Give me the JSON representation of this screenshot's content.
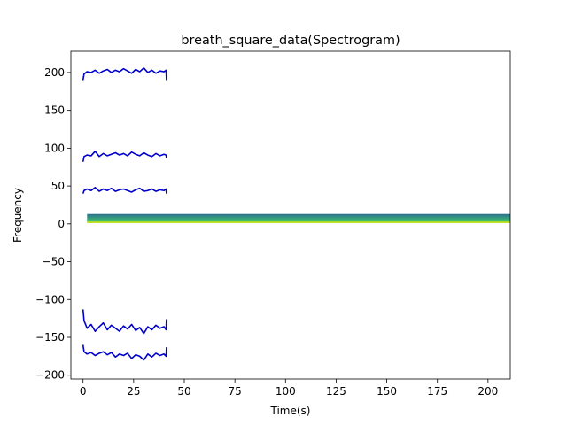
{
  "chart_data": {
    "type": "line",
    "title": "breath_square_data(Spectrogram)",
    "xlabel": "Time(s)",
    "ylabel": "Frequency",
    "xlim": [
      -6,
      211
    ],
    "ylim": [
      -205,
      228
    ],
    "grid": false,
    "legend": "none",
    "x_ticks": [
      0,
      25,
      50,
      75,
      100,
      125,
      150,
      175,
      200
    ],
    "x_tick_labels": [
      "0",
      "25",
      "50",
      "75",
      "100",
      "125",
      "150",
      "175",
      "200"
    ],
    "y_ticks": [
      200,
      150,
      100,
      50,
      0,
      -50,
      -100,
      -150,
      -200
    ],
    "y_tick_labels": [
      "200",
      "150",
      "100",
      "50",
      "0",
      "−50",
      "−100",
      "−150",
      "−200"
    ],
    "series": [
      {
        "color": "#0000cc",
        "x": [
          0,
          0.5,
          2,
          4,
          6,
          8,
          10,
          12,
          14,
          16,
          18,
          20,
          22,
          24,
          26,
          28,
          30,
          32,
          34,
          36,
          38,
          40,
          41,
          41.2
        ],
        "y": [
          190,
          198,
          201,
          200,
          203,
          199,
          202,
          204,
          200,
          203,
          201,
          205,
          202,
          199,
          204,
          201,
          206,
          200,
          203,
          199,
          202,
          201,
          203,
          190
        ]
      },
      {
        "color": "#0000cc",
        "x": [
          0,
          0.5,
          2,
          4,
          6,
          8,
          10,
          12,
          14,
          16,
          18,
          20,
          22,
          24,
          26,
          28,
          30,
          32,
          34,
          36,
          38,
          40,
          41,
          41.2
        ],
        "y": [
          82,
          89,
          91,
          90,
          96,
          89,
          93,
          90,
          92,
          94,
          91,
          93,
          90,
          95,
          92,
          90,
          94,
          91,
          89,
          93,
          90,
          92,
          91,
          87
        ]
      },
      {
        "color": "#0000cc",
        "x": [
          0,
          0.5,
          2,
          4,
          6,
          8,
          10,
          12,
          14,
          16,
          18,
          20,
          22,
          24,
          26,
          28,
          30,
          32,
          34,
          36,
          38,
          40,
          41,
          41.2
        ],
        "y": [
          40,
          44,
          46,
          44,
          48,
          43,
          46,
          44,
          47,
          43,
          45,
          46,
          44,
          42,
          45,
          47,
          43,
          44,
          46,
          43,
          45,
          44,
          46,
          40
        ]
      },
      {
        "color": "#0000cc",
        "x": [
          0,
          0.5,
          2,
          4,
          6,
          8,
          10,
          12,
          14,
          16,
          18,
          20,
          22,
          24,
          26,
          28,
          30,
          32,
          34,
          36,
          38,
          40,
          41,
          41.2
        ],
        "y": [
          -113,
          -128,
          -138,
          -133,
          -142,
          -136,
          -131,
          -140,
          -134,
          -138,
          -142,
          -135,
          -139,
          -133,
          -141,
          -137,
          -145,
          -136,
          -140,
          -134,
          -138,
          -136,
          -140,
          -126
        ]
      },
      {
        "color": "#0000cc",
        "x": [
          0,
          0.5,
          2,
          4,
          6,
          8,
          10,
          12,
          14,
          16,
          18,
          20,
          22,
          24,
          26,
          28,
          30,
          32,
          34,
          36,
          38,
          40,
          41,
          41.2
        ],
        "y": [
          -160,
          -169,
          -172,
          -170,
          -174,
          -171,
          -169,
          -173,
          -170,
          -176,
          -172,
          -174,
          -171,
          -178,
          -173,
          -175,
          -180,
          -172,
          -176,
          -171,
          -174,
          -172,
          -175,
          -163
        ]
      }
    ],
    "spectrogram": {
      "x_range": [
        2,
        211
      ],
      "y_range": [
        1,
        13
      ],
      "top_color": "#2b6e8e",
      "bottom_color": "#3fbf6f",
      "line_color": "#c8e020"
    }
  }
}
